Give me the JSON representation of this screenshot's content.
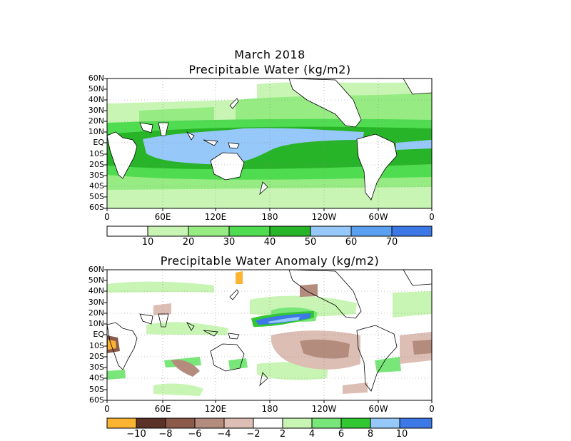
{
  "panel1": {
    "title_line1": "March 2018",
    "title_line2": "Precipitable Water (kg/m2)",
    "lat_labels": [
      "60N",
      "50N",
      "40N",
      "30N",
      "20N",
      "10N",
      "EQ",
      "10S",
      "20S",
      "30S",
      "40S",
      "50S",
      "60S"
    ],
    "lon_labels": [
      "0",
      "60E",
      "120E",
      "180",
      "120W",
      "60W",
      "0"
    ],
    "colorbar": {
      "labels": [
        "10",
        "20",
        "30",
        "40",
        "50",
        "60",
        "70"
      ],
      "colors": [
        "#ffffff",
        "#c8f5b4",
        "#96ec82",
        "#50dc50",
        "#28b428",
        "#96c8fa",
        "#5aa0f0",
        "#3c78e6"
      ]
    }
  },
  "panel2": {
    "title": "Precipitable Water Anomaly (kg/m2)",
    "lat_labels": [
      "60N",
      "50N",
      "40N",
      "30N",
      "20N",
      "10N",
      "EQ",
      "10S",
      "20S",
      "30S",
      "40S",
      "50S",
      "60S"
    ],
    "lon_labels": [
      "0",
      "60E",
      "120E",
      "180",
      "120W",
      "60W",
      "0"
    ],
    "colorbar": {
      "labels": [
        "−10",
        "−8",
        "−6",
        "−4",
        "−2",
        "2",
        "4",
        "6",
        "8",
        "10"
      ],
      "colors": [
        "#fab432",
        "#5a3228",
        "#8c5a4b",
        "#b48c7d",
        "#dcbeb4",
        "#ffffff",
        "#c8f5b4",
        "#78e678",
        "#32c832",
        "#96c8fa",
        "#3c78e6"
      ]
    }
  }
}
